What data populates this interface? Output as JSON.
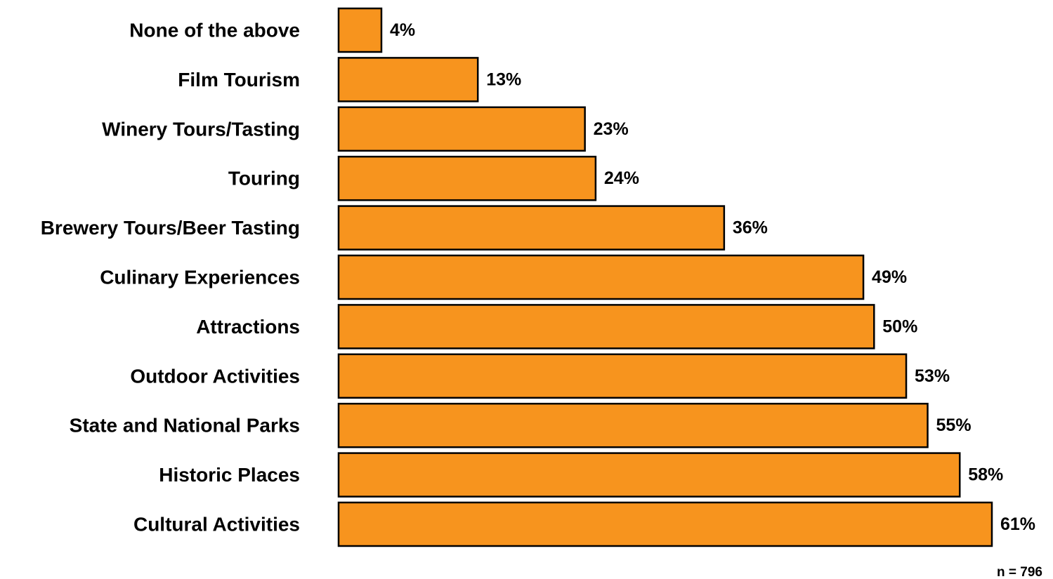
{
  "chart_data": {
    "type": "bar",
    "orientation": "horizontal",
    "categories": [
      "None of the above",
      "Film Tourism",
      "Winery Tours/Tasting",
      "Touring",
      "Brewery Tours/Beer Tasting",
      "Culinary Experiences",
      "Attractions",
      "Outdoor Activities",
      "State and National Parks",
      "Historic Places",
      "Cultural Activities"
    ],
    "values": [
      4,
      13,
      23,
      24,
      36,
      49,
      50,
      53,
      55,
      58,
      61
    ],
    "value_labels": [
      "4%",
      "13%",
      "23%",
      "24%",
      "36%",
      "49%",
      "50%",
      "53%",
      "55%",
      "58%",
      "61%"
    ],
    "xlim": [
      0,
      61
    ],
    "grid": false,
    "legend": "none",
    "bar_color": "#F7941E",
    "bar_edge_color": "#000000",
    "note": "n = 796"
  }
}
